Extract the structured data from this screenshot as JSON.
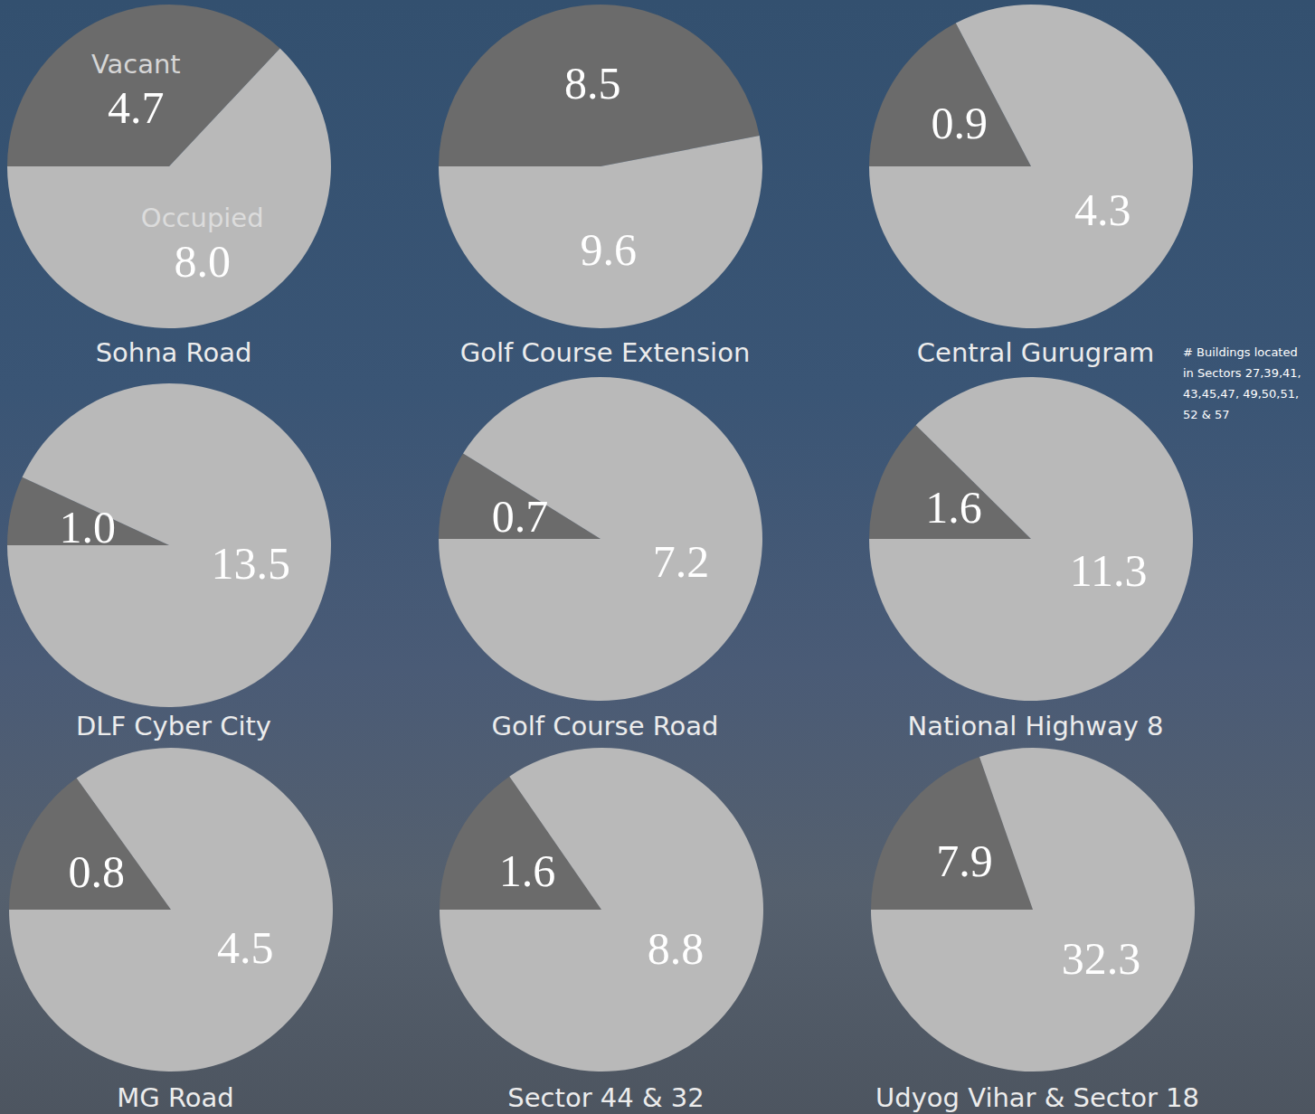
{
  "chart_data": [
    {
      "type": "pie",
      "title": "Sohna Road",
      "categories": [
        "Vacant",
        "Occupied"
      ],
      "values": [
        4.7,
        8.0
      ],
      "value_labels": [
        "4.7",
        "8.0"
      ],
      "colors": [
        "#6b6b6b",
        "#b9b9b9"
      ],
      "data_labels": true
    },
    {
      "type": "pie",
      "title": "Golf Course Extension",
      "values": [
        8.5,
        9.6
      ],
      "value_labels": [
        "8.5",
        "9.6"
      ],
      "colors": [
        "#6b6b6b",
        "#b9b9b9"
      ],
      "data_labels": true
    },
    {
      "type": "pie",
      "title": "Central Gurugram",
      "values": [
        0.9,
        4.3
      ],
      "value_labels": [
        "0.9",
        "4.3"
      ],
      "colors": [
        "#6b6b6b",
        "#b9b9b9"
      ],
      "data_labels": true,
      "annotation": "# Buildings located in Sectors 27,39,41,43,45,47, 49,50,51,52 & 57"
    },
    {
      "type": "pie",
      "title": "DLF Cyber City",
      "values": [
        1.0,
        13.5
      ],
      "value_labels": [
        "1.0",
        "13.5"
      ],
      "colors": [
        "#6b6b6b",
        "#b9b9b9"
      ],
      "data_labels": true
    },
    {
      "type": "pie",
      "title": "Golf Course Road",
      "values": [
        0.7,
        7.2
      ],
      "value_labels": [
        "0.7",
        "7.2"
      ],
      "colors": [
        "#6b6b6b",
        "#b9b9b9"
      ],
      "data_labels": true
    },
    {
      "type": "pie",
      "title": "National Highway 8",
      "values": [
        1.6,
        11.3
      ],
      "value_labels": [
        "1.6",
        "11.3"
      ],
      "colors": [
        "#6b6b6b",
        "#b9b9b9"
      ],
      "data_labels": true
    },
    {
      "type": "pie",
      "title": "MG Road",
      "values": [
        0.8,
        4.5
      ],
      "value_labels": [
        "0.8",
        "4.5"
      ],
      "colors": [
        "#6b6b6b",
        "#b9b9b9"
      ],
      "data_labels": true
    },
    {
      "type": "pie",
      "title": "Sector 44 & 32",
      "values": [
        1.6,
        8.8
      ],
      "value_labels": [
        "1.6",
        "8.8"
      ],
      "colors": [
        "#6b6b6b",
        "#b9b9b9"
      ],
      "data_labels": true
    },
    {
      "type": "pie",
      "title": "Udyog Vihar & Sector 18",
      "values": [
        7.9,
        32.3
      ],
      "value_labels": [
        "7.9",
        "32.3"
      ],
      "colors": [
        "#6b6b6b",
        "#b9b9b9"
      ],
      "data_labels": true
    }
  ]
}
